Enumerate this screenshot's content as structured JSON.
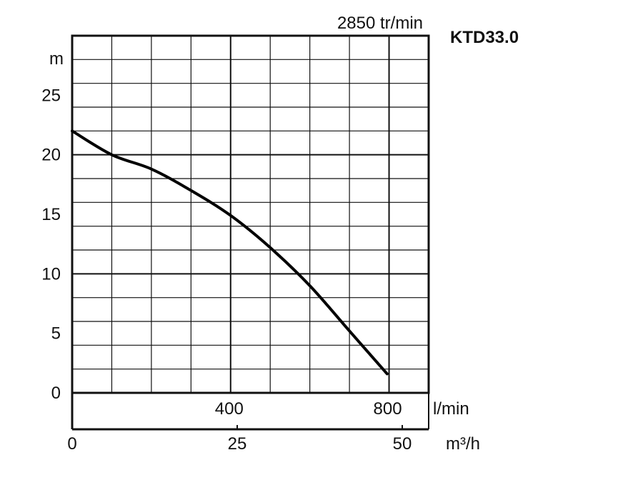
{
  "chart_data": {
    "type": "line",
    "model": "KTD33.0",
    "speed": "2850 tr/min",
    "ylabel": "m",
    "x_unit_primary": "l/min",
    "x_unit_secondary": "m³/h",
    "xlim": [
      0,
      900
    ],
    "ylim": [
      0,
      30
    ],
    "y_ticks": [
      {
        "value": 0,
        "label": "0"
      },
      {
        "value": 5,
        "label": "5"
      },
      {
        "value": 10,
        "label": "10"
      },
      {
        "value": 15,
        "label": "15"
      },
      {
        "value": 20,
        "label": "20"
      },
      {
        "value": 25,
        "label": "25"
      }
    ],
    "x_ticks_primary": [
      {
        "value": 400,
        "label": "400"
      },
      {
        "value": 800,
        "label": "800"
      }
    ],
    "x_ticks_secondary": [
      {
        "value": 0,
        "label": "0"
      },
      {
        "value": 25,
        "label": "25"
      },
      {
        "value": 50,
        "label": "50"
      }
    ],
    "grid": true,
    "series": [
      {
        "x": [
          0,
          100,
          200,
          300,
          400,
          500,
          600,
          700,
          795
        ],
        "y": [
          22.0,
          20.0,
          18.8,
          17.0,
          14.9,
          12.2,
          9.0,
          5.2,
          1.6
        ]
      }
    ]
  }
}
